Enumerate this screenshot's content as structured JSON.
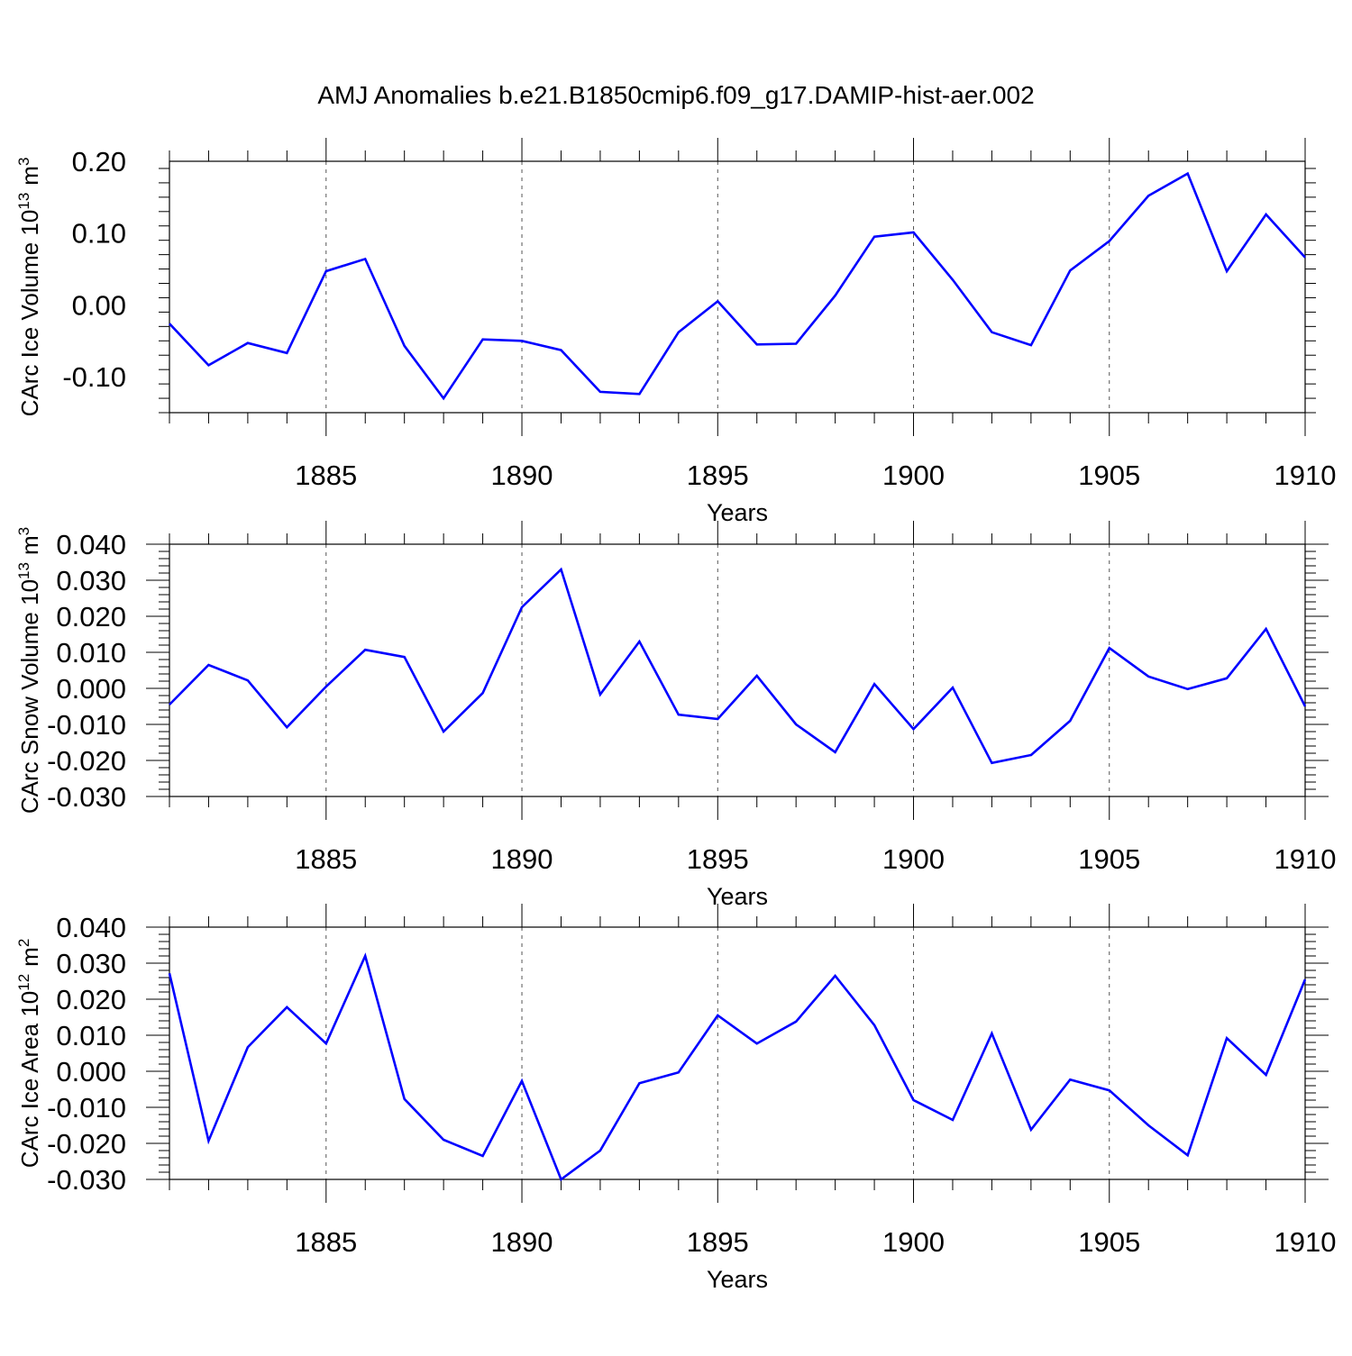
{
  "title": "AMJ Anomalies b.e21.B1850cmip6.f09_g17.DAMIP-hist-aer.002",
  "colors": {
    "line": "#0000ff",
    "axis": "#000000",
    "grid": "#555555"
  },
  "chart_data": [
    {
      "type": "line",
      "ylabel_main": "CArc Ice Volume 10",
      "ylabel_exp": "13",
      "ylabel_unit": "m",
      "ylabel_unit_exp": "3",
      "xlabel": "Years",
      "xlim": [
        1881,
        1910
      ],
      "ylim": [
        -0.15,
        0.2
      ],
      "yticks": [
        -0.1,
        0.0,
        0.1,
        0.2
      ],
      "ytick_labels": [
        "-0.10",
        "0.00",
        "0.10",
        "0.20"
      ],
      "xticks": [
        1885,
        1890,
        1895,
        1900,
        1905,
        1910
      ],
      "xtick_labels": [
        "1885",
        "1890",
        "1895",
        "1900",
        "1905",
        "1910"
      ],
      "x": [
        1881,
        1882,
        1883,
        1884,
        1885,
        1886,
        1887,
        1888,
        1889,
        1890,
        1891,
        1892,
        1893,
        1894,
        1895,
        1896,
        1897,
        1898,
        1899,
        1900,
        1901,
        1902,
        1903,
        1904,
        1905,
        1906,
        1907,
        1908,
        1909,
        1910
      ],
      "series": [
        {
          "name": "CArc Ice Volume",
          "values": [
            -0.026,
            -0.084,
            -0.053,
            -0.067,
            0.047,
            0.064,
            -0.057,
            -0.13,
            -0.048,
            -0.05,
            -0.063,
            -0.121,
            -0.124,
            -0.038,
            0.005,
            -0.055,
            -0.054,
            0.013,
            0.095,
            0.101,
            0.035,
            -0.038,
            -0.056,
            0.048,
            0.089,
            0.152,
            0.183,
            0.047,
            0.126,
            0.066
          ]
        }
      ]
    },
    {
      "type": "line",
      "ylabel_main": "CArc Snow Volume 10",
      "ylabel_exp": "13",
      "ylabel_unit": "m",
      "ylabel_unit_exp": "3",
      "xlabel": "Years",
      "xlim": [
        1881,
        1910
      ],
      "ylim": [
        -0.03,
        0.04
      ],
      "yticks": [
        -0.03,
        -0.02,
        -0.01,
        0.0,
        0.01,
        0.02,
        0.03,
        0.04
      ],
      "ytick_labels": [
        "-0.030",
        "-0.020",
        "-0.010",
        "0.000",
        "0.010",
        "0.020",
        "0.030",
        "0.040"
      ],
      "xticks": [
        1885,
        1890,
        1895,
        1900,
        1905,
        1910
      ],
      "xtick_labels": [
        "1885",
        "1890",
        "1895",
        "1900",
        "1905",
        "1910"
      ],
      "x": [
        1881,
        1882,
        1883,
        1884,
        1885,
        1886,
        1887,
        1888,
        1889,
        1890,
        1891,
        1892,
        1893,
        1894,
        1895,
        1896,
        1897,
        1898,
        1899,
        1900,
        1901,
        1902,
        1903,
        1904,
        1905,
        1906,
        1907,
        1908,
        1909,
        1910
      ],
      "series": [
        {
          "name": "CArc Snow Volume",
          "values": [
            -0.0045,
            0.0065,
            0.0022,
            -0.0108,
            0.0005,
            0.0107,
            0.0087,
            -0.012,
            -0.0013,
            0.0225,
            0.033,
            -0.0017,
            0.013,
            -0.0073,
            -0.0085,
            0.0035,
            -0.01,
            -0.0177,
            0.0012,
            -0.0113,
            0.0002,
            -0.0207,
            -0.0185,
            -0.009,
            0.0112,
            0.0033,
            -0.0002,
            0.0028,
            0.0165,
            -0.005
          ]
        }
      ]
    },
    {
      "type": "line",
      "ylabel_main": "CArc Ice Area 10",
      "ylabel_exp": "12",
      "ylabel_unit": "m",
      "ylabel_unit_exp": "2",
      "xlabel": "Years",
      "xlim": [
        1881,
        1910
      ],
      "ylim": [
        -0.03,
        0.04
      ],
      "yticks": [
        -0.03,
        -0.02,
        -0.01,
        0.0,
        0.01,
        0.02,
        0.03,
        0.04
      ],
      "ytick_labels": [
        "-0.030",
        "-0.020",
        "-0.010",
        "0.000",
        "0.010",
        "0.020",
        "0.030",
        "0.040"
      ],
      "xticks": [
        1885,
        1890,
        1895,
        1900,
        1905,
        1910
      ],
      "xtick_labels": [
        "1885",
        "1890",
        "1895",
        "1900",
        "1905",
        "1910"
      ],
      "x": [
        1881,
        1882,
        1883,
        1884,
        1885,
        1886,
        1887,
        1888,
        1889,
        1890,
        1891,
        1892,
        1893,
        1894,
        1895,
        1896,
        1897,
        1898,
        1899,
        1900,
        1901,
        1902,
        1903,
        1904,
        1905,
        1906,
        1907,
        1908,
        1909,
        1910
      ],
      "series": [
        {
          "name": "CArc Ice Area",
          "values": [
            0.0272,
            -0.0193,
            0.0067,
            0.0178,
            0.0077,
            0.032,
            -0.0077,
            -0.019,
            -0.0235,
            -0.0027,
            -0.03,
            -0.022,
            -0.0033,
            -0.0003,
            0.0155,
            0.0077,
            0.0138,
            0.0265,
            0.0128,
            -0.008,
            -0.0135,
            0.0105,
            -0.0162,
            -0.0023,
            -0.0053,
            -0.015,
            -0.0233,
            0.0092,
            -0.001,
            0.0255
          ]
        }
      ]
    }
  ]
}
